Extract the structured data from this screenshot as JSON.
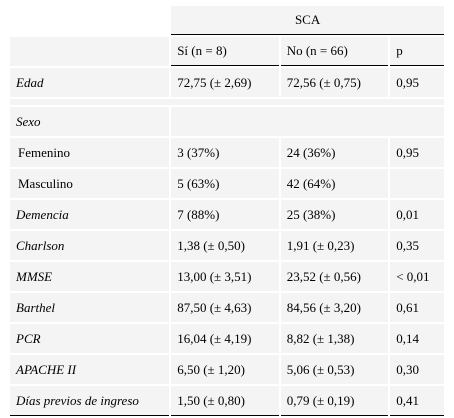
{
  "header": {
    "group_label": "SCA",
    "col_si": "Sí (n = 8)",
    "col_no": "No (n = 66)",
    "col_p": "p"
  },
  "rows": [
    {
      "label": "Edad",
      "si": "72,75 (± 2,69)",
      "no": "72,56 (± 0,75)",
      "p": "0,95"
    },
    {
      "label": "Sexo",
      "si": "",
      "no": "",
      "p": ""
    },
    {
      "label": "Femenino",
      "si": "3 (37%)",
      "no": "24 (36%)",
      "p": "0,95"
    },
    {
      "label": "Masculino",
      "si": "5 (63%)",
      "no": "42 (64%)",
      "p": ""
    },
    {
      "label": "Demencia",
      "si": "7 (88%)",
      "no": "25 (38%)",
      "p": "0,01"
    },
    {
      "label": "Charlson",
      "si": "1,38 (± 0,50)",
      "no": "1,91 (± 0,23)",
      "p": "0,35"
    },
    {
      "label": "MMSE",
      "si": "13,00 (± 3,51)",
      "no": "23,52 (± 0,56)",
      "p": "< 0,01"
    },
    {
      "label": "Barthel",
      "si": "87,50 (± 4,63)",
      "no": "84,56 (± 3,20)",
      "p": "0,61"
    },
    {
      "label": "PCR",
      "si": "16,04 (± 4,19)",
      "no": "8,82 (± 1,38)",
      "p": "0,14"
    },
    {
      "label": "APACHE II",
      "si": "6,50 (± 1,20)",
      "no": "5,06 (± 0,53)",
      "p": "0,30"
    },
    {
      "label": "Días previos de ingreso",
      "si": "1,50 (± 0,80)",
      "no": "0,79 (± 0,19)",
      "p": "0,41"
    }
  ]
}
